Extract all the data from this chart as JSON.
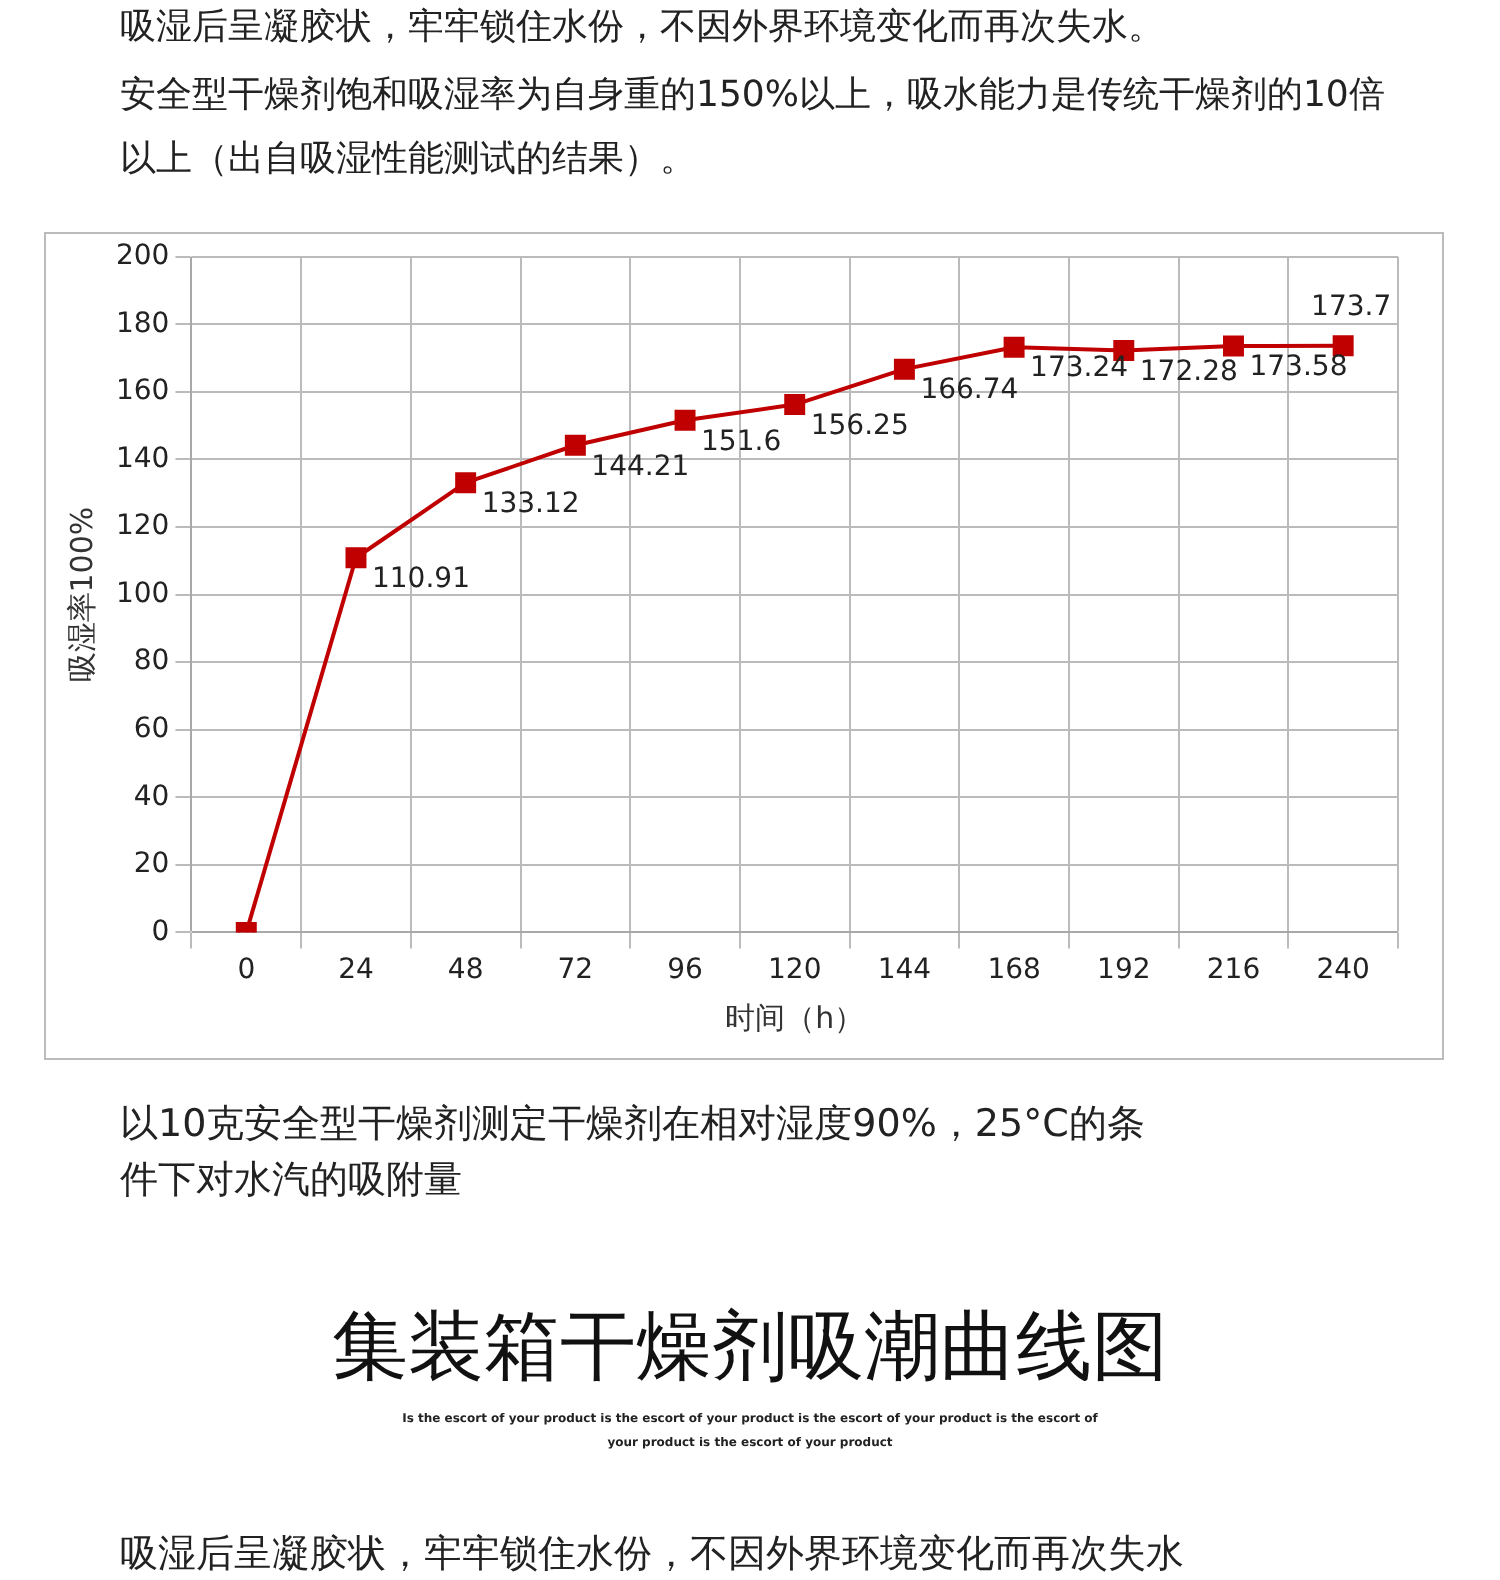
{
  "chart_data": {
    "type": "line",
    "title": "集装箱干燥剂吸潮曲线图",
    "annotations": [
      "吸湿后呈凝胶状，牢牢锁住水份，不因外界环境变化而再次失水。",
      "安全型干燥剂饱和吸湿率为自身重的150%以上，吸水能力是传统干燥剂的10倍以上（出自吸湿性能测试的结果）。",
      "以10克安全型干燥剂测定干燥剂在相对湿度90%，25°C的条件下对水汽的吸附量",
      "Is the escort of your product is the escort of your product is the escort of your product is the escort of your product is the escort of your product",
      "吸湿后呈凝胶状，牢牢锁住水份，不因外界环境变化而再次失水"
    ],
    "xlabel": "时间（h）",
    "ylabel": "吸湿率100%",
    "categories": [
      "0",
      "24",
      "48",
      "72",
      "96",
      "120",
      "144",
      "168",
      "192",
      "216",
      "240"
    ],
    "series": [
      {
        "color": "#c00000",
        "values": [
          0,
          110.91,
          133.12,
          144.21,
          151.6,
          156.25,
          166.74,
          173.24,
          172.28,
          173.58,
          173.7
        ],
        "value_labels": [
          null,
          "110.91",
          "133.12",
          "144.21",
          "151.6",
          "156.25",
          "166.74",
          "173.24",
          "172.28",
          "173.58",
          "173.7"
        ]
      }
    ],
    "ylim": [
      0,
      200
    ],
    "yticks": [
      0,
      20,
      40,
      60,
      80,
      100,
      120,
      140,
      160,
      180,
      200
    ],
    "grid": true,
    "marker": "square",
    "line_style": "solid",
    "legend": false
  }
}
